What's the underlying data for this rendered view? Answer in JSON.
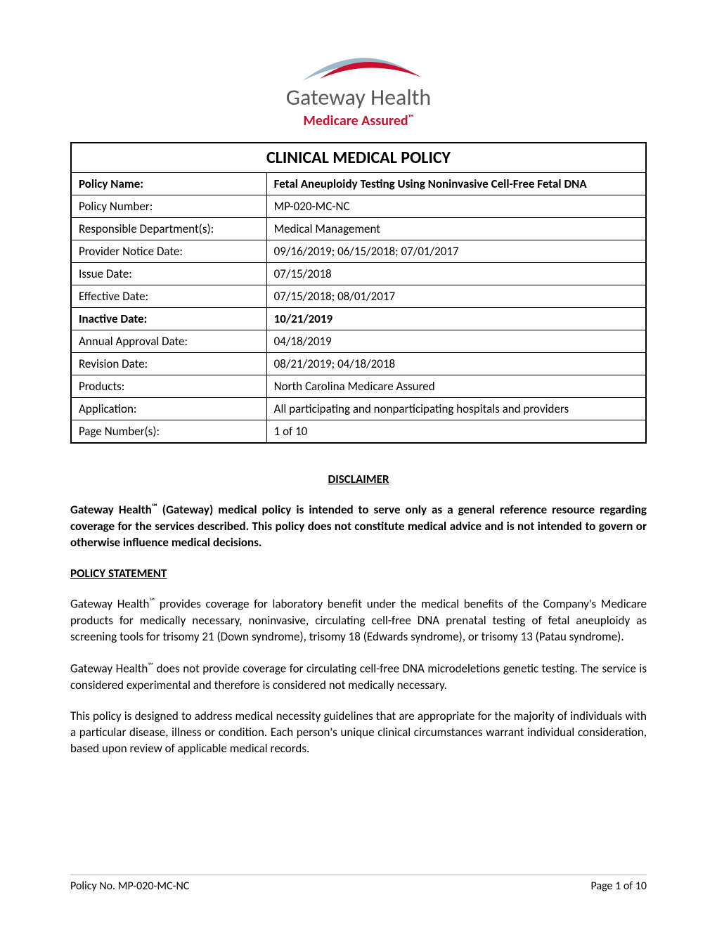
{
  "logo": {
    "main_text": "Gateway Health",
    "sub_text": "Medicare Assured",
    "swoosh_color_blue": "#9bb8c9",
    "swoosh_color_red": "#c8102e",
    "main_text_color": "#58595b",
    "sub_text_color": "#c8102e"
  },
  "table": {
    "title": "CLINICAL MEDICAL POLICY",
    "rows": [
      {
        "label": "Policy Name:",
        "value": "Fetal Aneuploidy Testing Using Noninvasive Cell-Free Fetal DNA",
        "bold": true
      },
      {
        "label": "Policy Number:",
        "value": "MP-020-MC-NC",
        "bold": false
      },
      {
        "label": "Responsible Department(s):",
        "value": "Medical Management",
        "bold": false
      },
      {
        "label": "Provider Notice Date:",
        "value": "09/16/2019; 06/15/2018; 07/01/2017",
        "bold": false
      },
      {
        "label": "Issue Date:",
        "value": "07/15/2018",
        "bold": false
      },
      {
        "label": "Effective Date:",
        "value": "07/15/2018; 08/01/2017",
        "bold": false
      },
      {
        "label": "Inactive Date:",
        "value": "10/21/2019",
        "bold": true
      },
      {
        "label": "Annual Approval Date:",
        "value": "04/18/2019",
        "bold": false
      },
      {
        "label": "Revision Date:",
        "value": "08/21/2019; 04/18/2018",
        "bold": false
      },
      {
        "label": "Products:",
        "value": "North Carolina Medicare Assured",
        "bold": false
      },
      {
        "label": "Application:",
        "value": "All participating and nonparticipating hospitals and providers",
        "bold": false
      },
      {
        "label": "Page Number(s):",
        "value": "1 of 10",
        "bold": false
      }
    ]
  },
  "disclaimer": {
    "heading": "DISCLAIMER",
    "body_prefix": "Gateway Health",
    "body_suffix": " (Gateway) medical policy is intended to serve only as a general reference resource regarding coverage for the services described. This policy does not constitute medical advice and is not intended to govern or otherwise influence medical decisions."
  },
  "policy_statement": {
    "heading": "POLICY STATEMENT",
    "para1_prefix": "Gateway Health",
    "para1_suffix": " provides coverage for laboratory benefit under the medical benefits of the Company's Medicare products for medically necessary, noninvasive, circulating cell-free DNA prenatal testing of fetal aneuploidy as screening tools for trisomy 21 (Down syndrome), trisomy 18 (Edwards syndrome), or trisomy 13 (Patau syndrome).",
    "para2_prefix": "Gateway Health",
    "para2_suffix": " does not provide coverage for circulating cell-free DNA microdeletions genetic testing. The service is considered experimental and therefore is considered not medically necessary.",
    "para3": "This policy is designed to address medical necessity guidelines that are appropriate for the majority of individuals with a particular disease, illness or condition. Each person's unique clinical circumstances warrant individual consideration, based upon review of applicable medical records."
  },
  "footer": {
    "left": "Policy No. MP-020-MC-NC",
    "right": "Page 1 of 10"
  },
  "styles": {
    "body_font_size": 17,
    "title_font_size": 24,
    "border_color": "#000000",
    "background_color": "#ffffff",
    "text_color": "#000000",
    "footer_rule_color": "#b0b0b0"
  }
}
